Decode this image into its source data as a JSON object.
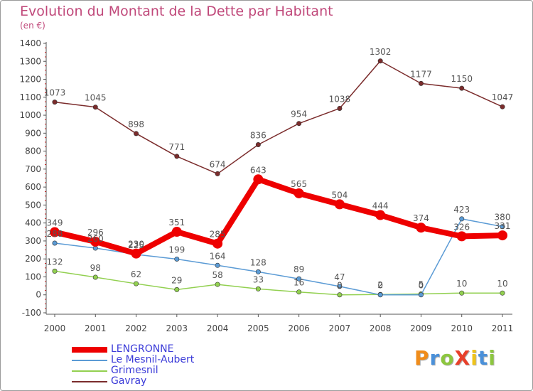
{
  "title": "Evolution du Montant de la Dette par Habitant",
  "subtitle": "(en €)",
  "logo": {
    "text": "ProXiti",
    "colors": [
      "#f08c1a",
      "#4a90d9",
      "#8cc63f",
      "#e8402a",
      "#f0c419",
      "#4a90d9",
      "#8cc63f"
    ]
  },
  "chart_data": {
    "type": "line",
    "categories": [
      "2000",
      "2001",
      "2002",
      "2003",
      "2004",
      "2005",
      "2006",
      "2007",
      "2008",
      "2009",
      "2010",
      "2011"
    ],
    "ylim": [
      -100,
      1400
    ],
    "yticks": [
      -100,
      0,
      100,
      200,
      300,
      400,
      500,
      600,
      700,
      800,
      900,
      1000,
      1100,
      1200,
      1300,
      1400
    ],
    "legend_position": "bottom-left",
    "grid": false,
    "series": [
      {
        "name": "LENGRONNE",
        "color": "#ee0000",
        "values": [
          349,
          296,
          230,
          351,
          285,
          643,
          565,
          504,
          444,
          374,
          326,
          331
        ],
        "labels": [
          "349",
          "296",
          "230",
          "351",
          "285",
          "643",
          "565",
          "504",
          "444",
          "374",
          "326",
          "331"
        ]
      },
      {
        "name": "Le Mesnil-Aubert",
        "color": "#5b9bd5",
        "values": [
          288,
          260,
          225,
          199,
          164,
          128,
          89,
          47,
          0,
          0,
          423,
          380
        ],
        "labels": [
          "288",
          "260",
          "225",
          "199",
          "164",
          "128",
          "89",
          "47",
          "0",
          "0",
          "423",
          "380"
        ]
      },
      {
        "name": "Grimesnil",
        "color": "#92d050",
        "values": [
          132,
          98,
          62,
          29,
          58,
          33,
          16,
          0,
          2,
          5,
          10,
          10
        ],
        "labels": [
          "132",
          "98",
          "62",
          "29",
          "58",
          "33",
          "16",
          "0",
          "2",
          "5",
          "10",
          "10"
        ]
      },
      {
        "name": "Gavray",
        "color": "#7b2c2c",
        "values": [
          1073,
          1045,
          898,
          771,
          674,
          836,
          954,
          1038,
          1302,
          1177,
          1150,
          1047
        ],
        "labels": [
          "1073",
          "1045",
          "898",
          "771",
          "674",
          "836",
          "954",
          "1038",
          "1302",
          "1177",
          "1150",
          "1047"
        ]
      }
    ]
  }
}
